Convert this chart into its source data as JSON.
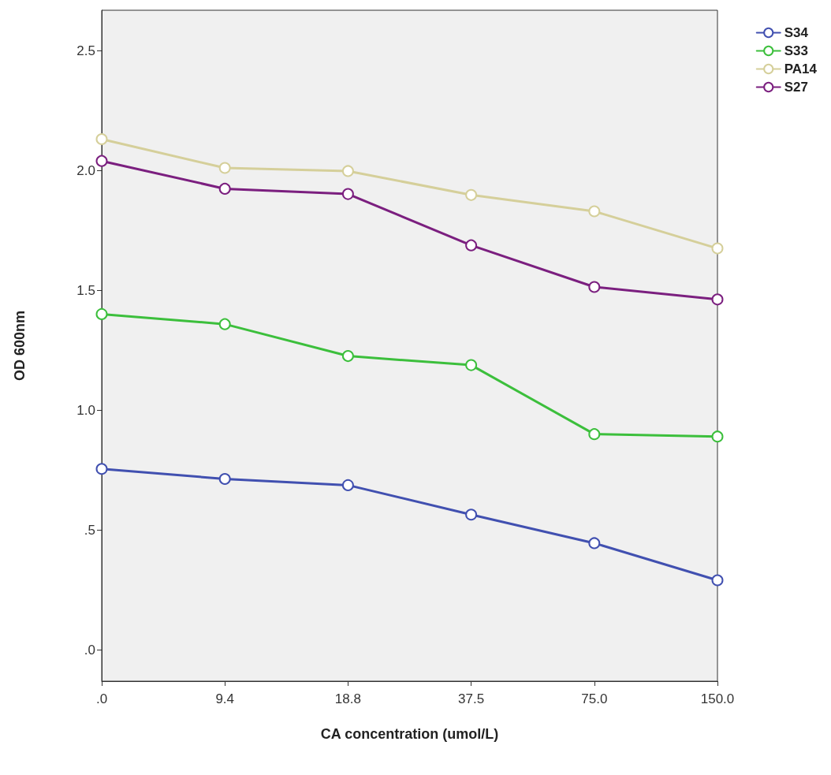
{
  "chart_data": {
    "type": "line",
    "xlabel": "CA concentration (umol/L)",
    "ylabel": "OD 600nm",
    "categories": [
      ".0",
      "9.4",
      "18.8",
      "37.5",
      "75.0",
      "150.0"
    ],
    "ylim": [
      -0.13,
      2.67
    ],
    "yticks": [
      {
        "value": 0,
        "label": ".0"
      },
      {
        "value": 0.5,
        "label": ".5"
      },
      {
        "value": 1,
        "label": "1.0"
      },
      {
        "value": 1.5,
        "label": "1.5"
      },
      {
        "value": 2,
        "label": "2.0"
      },
      {
        "value": 2.5,
        "label": "2.5"
      }
    ],
    "grid": false,
    "legend": "top right",
    "marker": "circle",
    "line_style": "solid",
    "series": [
      {
        "name": "S34",
        "color": "#4150b0",
        "values": [
          0.756,
          0.714,
          0.688,
          0.565,
          0.446,
          0.291
        ]
      },
      {
        "name": "S33",
        "color": "#3cbf3c",
        "values": [
          1.402,
          1.36,
          1.227,
          1.189,
          0.901,
          0.891
        ]
      },
      {
        "name": "PA14",
        "color": "#d5cf9a",
        "values": [
          2.132,
          2.012,
          1.999,
          1.899,
          1.831,
          1.676
        ]
      },
      {
        "name": "S27",
        "color": "#7b1f7f",
        "values": [
          2.041,
          1.925,
          1.903,
          1.689,
          1.515,
          1.463
        ]
      }
    ]
  }
}
